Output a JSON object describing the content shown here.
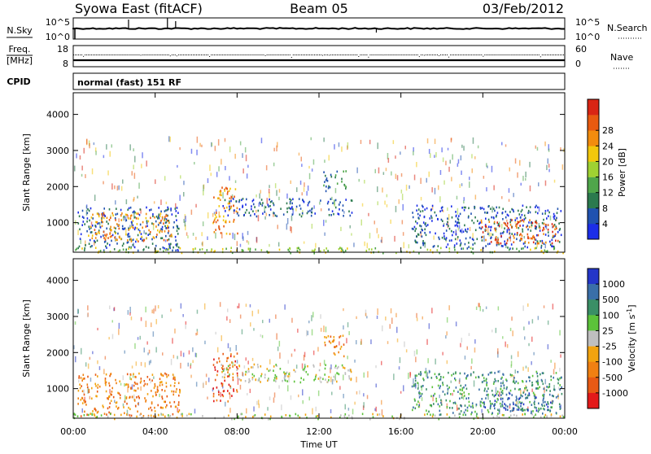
{
  "header": {
    "station": "Syowa East (fitACF)",
    "beam": "Beam 05",
    "date": "03/Feb/2012"
  },
  "panels": {
    "nsky": {
      "label": "N.Sky",
      "left_ticks": [
        "10^5",
        "10^0"
      ],
      "right_ticks": [
        "10^5",
        "10^0"
      ],
      "right_label": "N.Search"
    },
    "freq": {
      "label_top": "Freq.",
      "label_unit": "[MHz]",
      "left_ticks": [
        "18",
        "8"
      ],
      "right_ticks": [
        "60",
        "0"
      ],
      "right_label": "Nave"
    },
    "cpid": {
      "label": "CPID",
      "text": "normal (fast) 151 RF"
    }
  },
  "chart_data": [
    {
      "type": "heatmap",
      "quantity": "Power",
      "ylabel": "Slant Range [km]",
      "yticks": [
        1000,
        2000,
        3000,
        4000
      ],
      "ylim": [
        180,
        4600
      ],
      "colorbar": {
        "label": "Power [dB]",
        "ticks": [
          "4",
          "8",
          "12",
          "16",
          "20",
          "24",
          "28"
        ],
        "colors": [
          "#1c2ee8",
          "#2052b0",
          "#2b7a4e",
          "#4fa64a",
          "#9fd132",
          "#f2c70c",
          "#f28c0e",
          "#e85a10",
          "#d92514"
        ]
      },
      "regions": [
        {
          "t0": 0.2,
          "t1": 5.2,
          "r0": 250,
          "r1": 1450,
          "color_index": 1
        },
        {
          "t0": 0.7,
          "t1": 4.8,
          "r0": 500,
          "r1": 1300,
          "color_index": 6
        },
        {
          "t0": 6.8,
          "t1": 8.0,
          "r0": 650,
          "r1": 2000,
          "color_index": 6
        },
        {
          "t0": 7.2,
          "t1": 13.6,
          "r0": 1200,
          "r1": 1700,
          "color_index": 1
        },
        {
          "t0": 12.2,
          "t1": 13.3,
          "r0": 1900,
          "r1": 2500,
          "color_index": 2
        },
        {
          "t0": 16.5,
          "t1": 23.9,
          "r0": 300,
          "r1": 1500,
          "color_index": 1
        },
        {
          "t0": 19.8,
          "t1": 23.8,
          "r0": 450,
          "r1": 1100,
          "color_index": 7
        },
        {
          "t0": 0.0,
          "t1": 24.0,
          "r0": 180,
          "r1": 330,
          "color_index": 4
        }
      ]
    },
    {
      "type": "heatmap",
      "quantity": "Velocity",
      "xlabel": "Time UT",
      "xticks": [
        "00:00",
        "04:00",
        "08:00",
        "12:00",
        "16:00",
        "20:00",
        "00:00"
      ],
      "xlim": [
        0,
        24
      ],
      "ylabel": "Slant Range [km]",
      "yticks": [
        1000,
        2000,
        3000,
        4000
      ],
      "ylim": [
        180,
        4600
      ],
      "colorbar": {
        "label": "Velocity [m s^-1]",
        "ticks": [
          "1000",
          "500",
          "100",
          "25",
          "-25",
          "-100",
          "-500",
          "-1000"
        ],
        "colors": [
          "#2436c9",
          "#3a6fa8",
          "#3a8f66",
          "#5cc23a",
          "#bfbfbf",
          "#f2a30f",
          "#f08012",
          "#e85a14",
          "#e31a1a"
        ]
      },
      "regions": [
        {
          "t0": 0.2,
          "t1": 5.2,
          "r0": 250,
          "r1": 1450,
          "color_index": 6
        },
        {
          "t0": 6.8,
          "t1": 8.0,
          "r0": 650,
          "r1": 2000,
          "color_index": 7
        },
        {
          "t0": 7.2,
          "t1": 13.6,
          "r0": 1200,
          "r1": 1700,
          "color_index": 4
        },
        {
          "t0": 12.2,
          "t1": 13.3,
          "r0": 1900,
          "r1": 2500,
          "color_index": 6
        },
        {
          "t0": 16.5,
          "t1": 23.9,
          "r0": 300,
          "r1": 1500,
          "color_index": 2
        },
        {
          "t0": 20.0,
          "t1": 23.8,
          "r0": 400,
          "r1": 900,
          "color_index": 1
        },
        {
          "t0": 0.0,
          "t1": 24.0,
          "r0": 180,
          "r1": 330,
          "color_index": 4
        }
      ]
    }
  ]
}
